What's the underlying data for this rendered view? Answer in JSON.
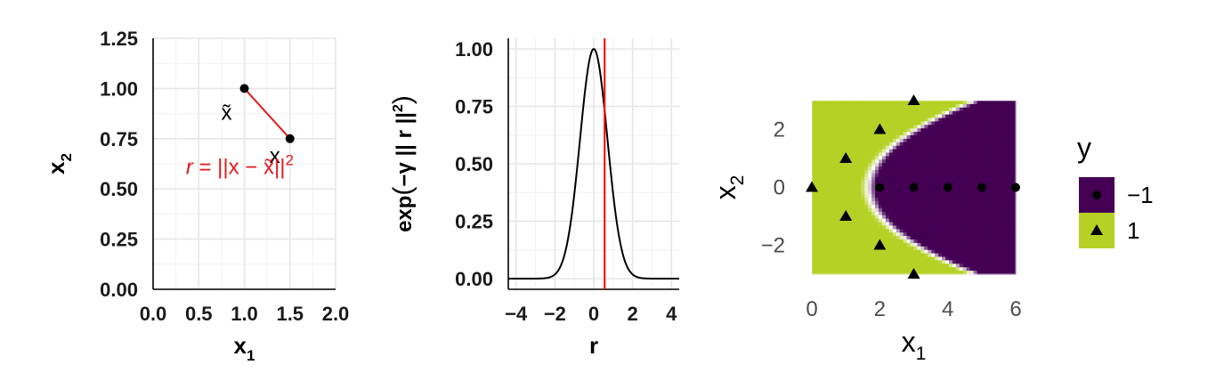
{
  "chart_data": [
    {
      "type": "scatter",
      "xlabel": "x",
      "xlabel_sub": "1",
      "ylabel": "x",
      "ylabel_sub": "2",
      "xlim": [
        0,
        2
      ],
      "ylim": [
        0,
        1.25
      ],
      "xticks": [
        "0.0",
        "0.5",
        "1.0",
        "1.5",
        "2.0"
      ],
      "yticks": [
        "0.00",
        "0.25",
        "0.50",
        "0.75",
        "1.00",
        "1.25"
      ],
      "points": [
        {
          "label": "x̃",
          "x": 1.0,
          "y": 1.0
        },
        {
          "label": "x",
          "x": 1.5,
          "y": 0.75
        }
      ],
      "segment": {
        "from": [
          1.0,
          1.0
        ],
        "to": [
          1.5,
          0.75
        ],
        "color": "#e41a1c"
      },
      "annotation": {
        "text_r": "r",
        "text_eq": " = ||x − x̃||",
        "text_sup": "2",
        "x": 0.95,
        "y": 0.6,
        "color": "#e41a1c"
      },
      "grid": true
    },
    {
      "type": "line",
      "xlabel": "r",
      "ylabel_pre": "exp",
      "ylabel_mid": "−γ || r ||",
      "ylabel_sup": "2",
      "xlim": [
        -4.4,
        4.4
      ],
      "ylim": [
        0,
        1.05
      ],
      "xticks": [
        "−4",
        "−2",
        "0",
        "2",
        "4"
      ],
      "xtick_values": [
        -4,
        -2,
        0,
        2,
        4
      ],
      "yticks": [
        "0.00",
        "0.25",
        "0.50",
        "0.75",
        "1.00"
      ],
      "gamma": 1,
      "function": "exp(-gamma * r^2)",
      "vline": {
        "x": 0.56,
        "color": "#ff0000"
      },
      "grid": true
    },
    {
      "type": "heatmap",
      "xlabel": "x",
      "xlabel_sub": "1",
      "ylabel": "x",
      "ylabel_sub": "2",
      "xlim": [
        0,
        6
      ],
      "ylim": [
        -3,
        3
      ],
      "xticks": [
        "0",
        "2",
        "4",
        "6"
      ],
      "xtick_values": [
        0,
        2,
        4,
        6
      ],
      "yticks": [
        "−2",
        "0",
        "2"
      ],
      "ytick_values": [
        -2,
        0,
        2
      ],
      "colors": {
        "neg": "#440154",
        "pos": "#b5d126"
      },
      "legend": {
        "title": "y",
        "position": "right",
        "entries": [
          {
            "label": "−1",
            "color": "#440154",
            "shape": "circle"
          },
          {
            "label": "1",
            "color": "#b5d126",
            "shape": "triangle"
          }
        ]
      },
      "class_neg": [
        [
          2,
          0
        ],
        [
          3,
          0
        ],
        [
          4,
          0
        ],
        [
          5,
          0
        ],
        [
          6,
          0
        ]
      ],
      "class_pos": [
        [
          0,
          0
        ],
        [
          1,
          1
        ],
        [
          1,
          -1
        ],
        [
          2,
          2
        ],
        [
          2,
          -2
        ],
        [
          3,
          3
        ],
        [
          3,
          -3
        ]
      ]
    }
  ]
}
